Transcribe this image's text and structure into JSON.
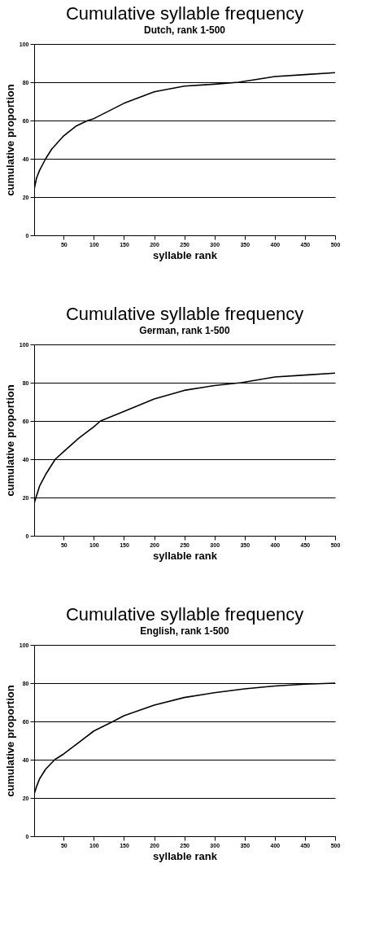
{
  "chart_data": [
    {
      "type": "line",
      "title": "Cumulative syllable frequency",
      "subtitle": "Dutch, rank 1-500",
      "xlabel": "syllable rank",
      "ylabel": "cumulative proportion",
      "xlim": [
        1,
        500
      ],
      "ylim": [
        0,
        100
      ],
      "xticks": [
        50,
        100,
        150,
        200,
        250,
        300,
        350,
        400,
        450,
        500
      ],
      "yticks": [
        0,
        20,
        40,
        60,
        80,
        100
      ],
      "grid": "y",
      "series": [
        {
          "color": "#000000",
          "x": [
            1,
            5,
            10,
            20,
            30,
            50,
            70,
            90,
            100,
            150,
            200,
            250,
            300,
            340,
            400,
            450,
            500
          ],
          "values": [
            24,
            30,
            34,
            40,
            45,
            52,
            57,
            60,
            61,
            69,
            75,
            78,
            79,
            80,
            83,
            84,
            85
          ]
        }
      ]
    },
    {
      "type": "line",
      "title": "Cumulative syllable frequency",
      "subtitle": "German, rank 1-500",
      "xlabel": "syllable rank",
      "ylabel": "cumulative proportion",
      "xlim": [
        1,
        500
      ],
      "ylim": [
        0,
        100
      ],
      "xticks": [
        50,
        100,
        150,
        200,
        250,
        300,
        350,
        400,
        450,
        500
      ],
      "yticks": [
        0,
        20,
        40,
        60,
        80,
        100
      ],
      "grid": "y",
      "series": [
        {
          "color": "#000000",
          "x": [
            1,
            5,
            10,
            20,
            36,
            50,
            75,
            100,
            111,
            150,
            200,
            250,
            300,
            344,
            400,
            450,
            500
          ],
          "values": [
            17,
            21,
            26,
            32,
            40,
            44,
            51,
            57,
            60,
            65,
            71.5,
            76,
            78.5,
            80,
            83,
            84,
            85
          ]
        }
      ]
    },
    {
      "type": "line",
      "title": "Cumulative syllable frequency",
      "subtitle": "English, rank 1-500",
      "xlabel": "syllable rank",
      "ylabel": "cumulative proportion",
      "xlim": [
        1,
        500
      ],
      "ylim": [
        0,
        100
      ],
      "xticks": [
        50,
        100,
        150,
        200,
        250,
        300,
        350,
        400,
        450,
        500
      ],
      "yticks": [
        0,
        20,
        40,
        60,
        80,
        100
      ],
      "grid": "y",
      "series": [
        {
          "color": "#000000",
          "x": [
            1,
            5,
            10,
            20,
            35,
            50,
            75,
            100,
            132,
            150,
            200,
            250,
            300,
            350,
            400,
            450,
            500
          ],
          "values": [
            22,
            26,
            30,
            35,
            40,
            43,
            49,
            55,
            60,
            63,
            68.5,
            72.5,
            75,
            77,
            78.5,
            79.5,
            80
          ]
        }
      ]
    }
  ]
}
